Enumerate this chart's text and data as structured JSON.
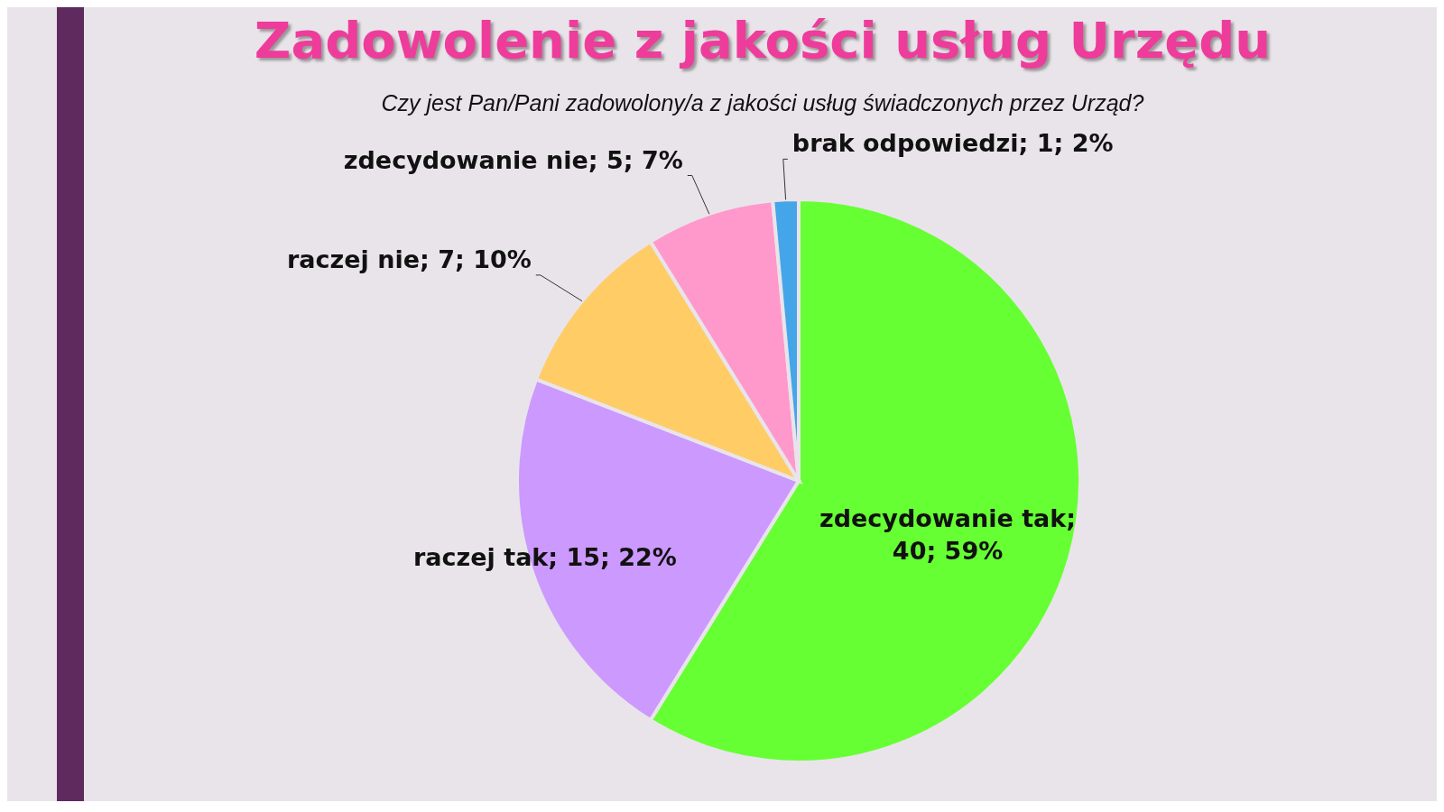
{
  "chart_data": {
    "type": "pie",
    "title": "Zadowolenie z jakości usług Urzędu",
    "subtitle": "Czy jest Pan/Pani zadowolony/a z jakości usług świadczonych przez Urząd?",
    "categories": [
      "zdecydowanie tak; 40; 59%",
      "raczej tak; 15; 22%",
      "raczej nie; 7; 10%",
      "zdecydowanie nie; 5; 7%",
      "brak odpowiedzi; 1; 2%"
    ],
    "values": [
      40,
      15,
      7,
      5,
      1
    ],
    "colors": [
      "#66ff33",
      "#cc99ff",
      "#ffcc66",
      "#ff99cc",
      "#44a6e8"
    ],
    "legend": false
  }
}
